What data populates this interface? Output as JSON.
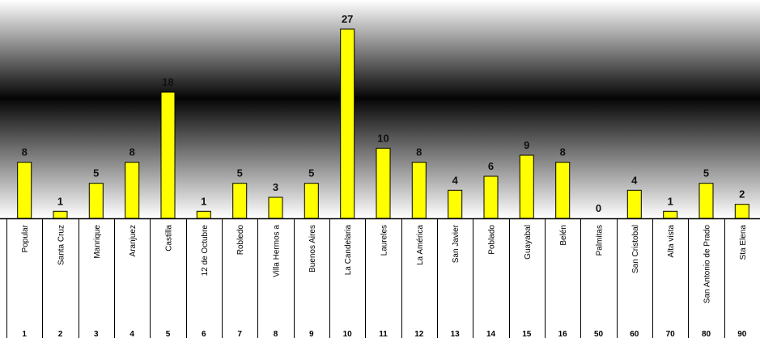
{
  "chart_data": {
    "type": "bar",
    "title": "",
    "xlabel": "",
    "ylabel": "",
    "ylim": [
      0,
      30
    ],
    "bar_color": "#FFFF00",
    "categories": [
      "Popular",
      "Santa Cruz",
      "Manrique",
      "Aranjuez",
      "Castilla",
      "12 de Octubre",
      "Robledo",
      "Villa Hermos a",
      "Buenos Aires",
      "La Candelaria",
      "Laureles",
      "La América",
      "San Javier",
      "Poblado",
      "Guayabal",
      "Belén",
      "Palmitas",
      "San Cristobal",
      "Alta vista",
      "San Antonio de Prado",
      "Sta Elena"
    ],
    "codes": [
      "1",
      "2",
      "3",
      "4",
      "5",
      "6",
      "7",
      "8",
      "9",
      "10",
      "11",
      "12",
      "13",
      "14",
      "15",
      "16",
      "50",
      "60",
      "70",
      "80",
      "90"
    ],
    "values": [
      8,
      1,
      5,
      8,
      18,
      1,
      5,
      3,
      5,
      27,
      10,
      8,
      4,
      6,
      9,
      8,
      0,
      4,
      1,
      5,
      2
    ]
  }
}
